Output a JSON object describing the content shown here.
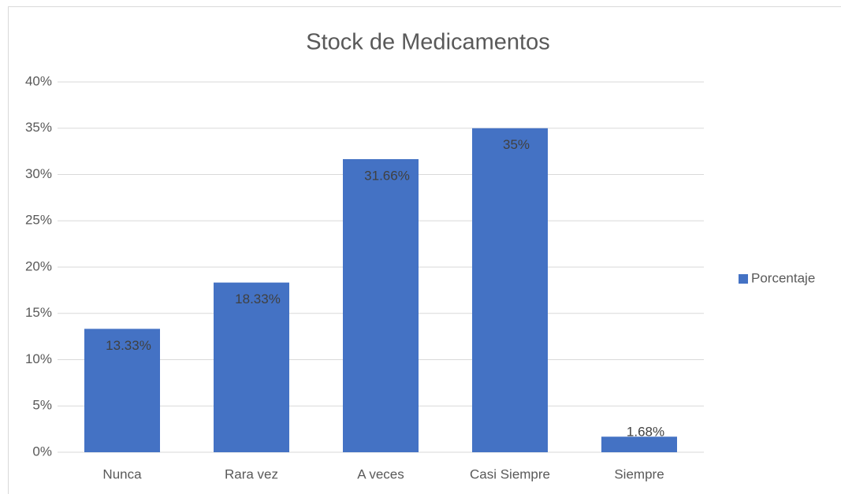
{
  "chart_data": {
    "type": "bar",
    "title": "Stock de Medicamentos",
    "categories": [
      "Nunca",
      "Rara vez",
      "A veces",
      "Casi Siempre",
      "Siempre"
    ],
    "series": [
      {
        "name": "Porcentaje",
        "color": "#4472c4",
        "values": [
          13.33,
          18.33,
          31.66,
          35,
          1.68
        ],
        "value_labels": [
          "13.33%",
          "18.33%",
          "31.66%",
          "35%",
          "1.68%"
        ]
      }
    ],
    "ylim": [
      0,
      40
    ],
    "yticks": [
      {
        "value": 0,
        "label": "0%"
      },
      {
        "value": 5,
        "label": "5%"
      },
      {
        "value": 10,
        "label": "10%"
      },
      {
        "value": 15,
        "label": "15%"
      },
      {
        "value": 20,
        "label": "20%"
      },
      {
        "value": 25,
        "label": "25%"
      },
      {
        "value": 30,
        "label": "30%"
      },
      {
        "value": 35,
        "label": "35%"
      },
      {
        "value": 40,
        "label": "40%"
      }
    ],
    "grid": true,
    "legend": "right"
  }
}
